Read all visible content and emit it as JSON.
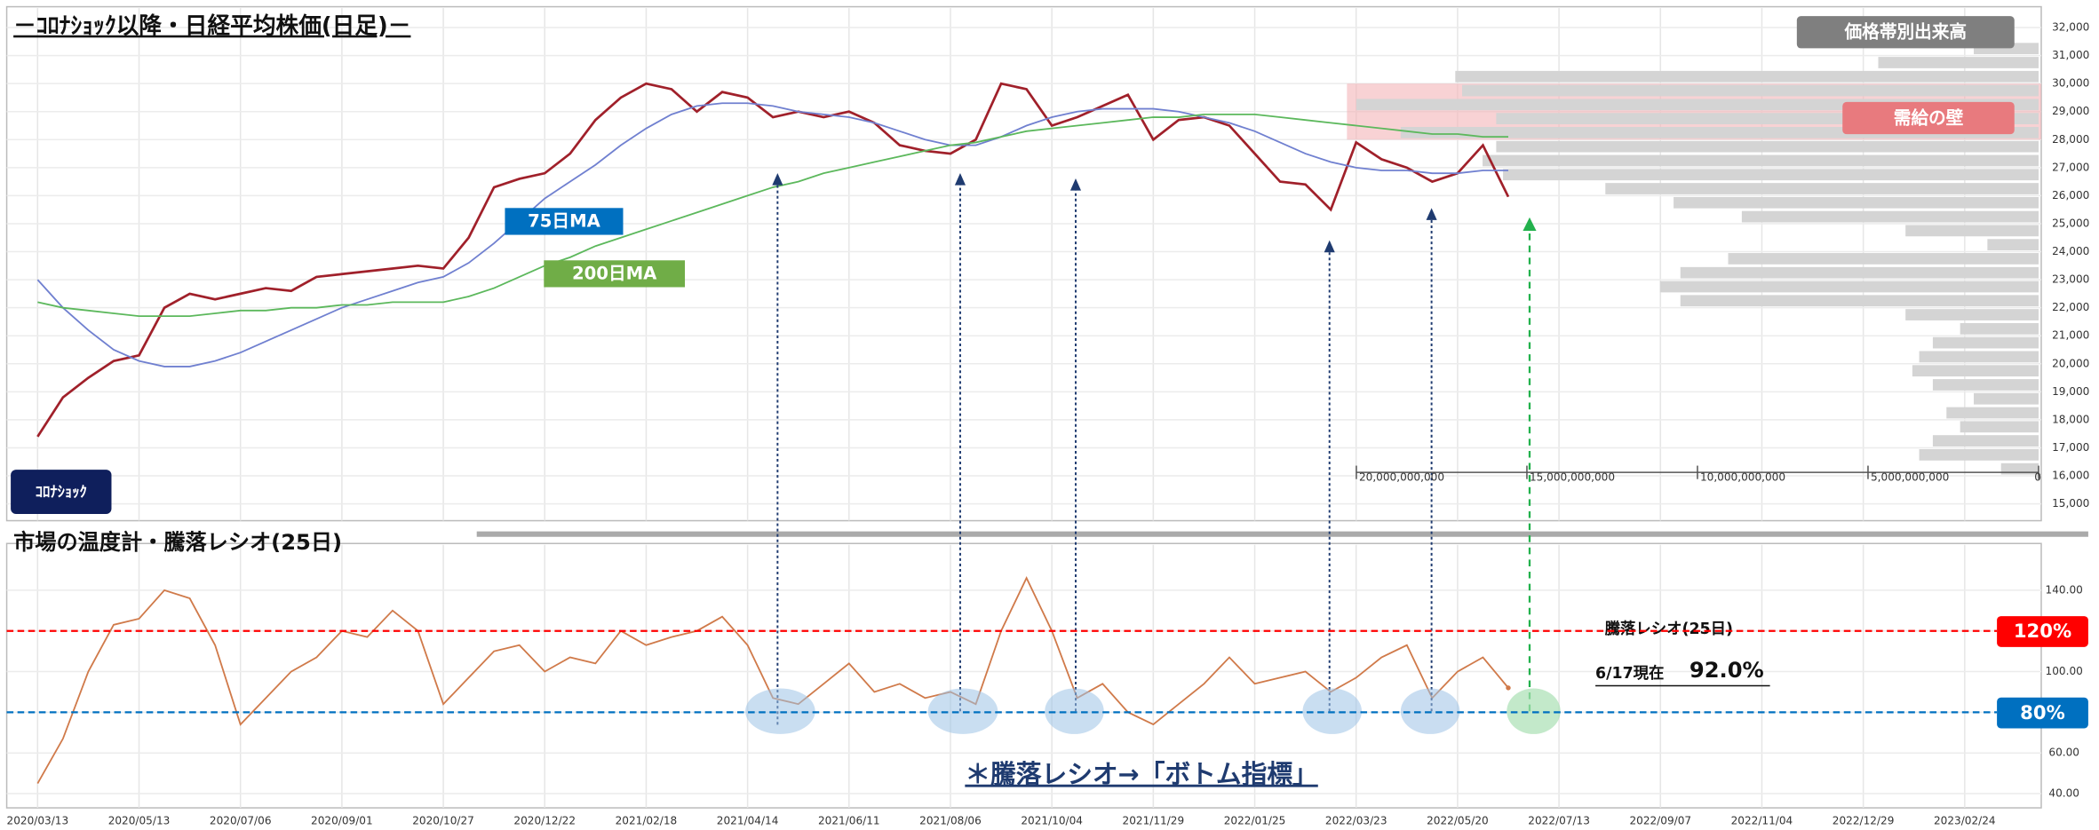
{
  "chart_data": [
    {
      "type": "line",
      "title": "－ｺﾛﾅｼｮｯｸ以降・日経平均株価(日足)－",
      "event_label": "ｺﾛﾅｼｮｯｸ",
      "categories": [
        "2020/03/13",
        null,
        null,
        null,
        "2020/05/13",
        null,
        null,
        null,
        "2020/07/06",
        null,
        null,
        null,
        "2020/09/01",
        null,
        null,
        null,
        "2020/10/27",
        null,
        null,
        null,
        "2020/12/22",
        null,
        null,
        null,
        "2021/02/18",
        null,
        null,
        null,
        "2021/04/14",
        null,
        null,
        null,
        "2021/06/11",
        null,
        null,
        null,
        "2021/08/06",
        null,
        null,
        null,
        "2021/10/04",
        null,
        null,
        null,
        "2021/11/29",
        null,
        null,
        null,
        "2022/01/25",
        null,
        null,
        null,
        "2022/03/23",
        null,
        null,
        null,
        "2022/05/20",
        null,
        null,
        null,
        "2022/07/13",
        null,
        null,
        null,
        "2022/09/07",
        null,
        null,
        null,
        "2022/11/04",
        null,
        null,
        null,
        "2022/12/29",
        null,
        null,
        null,
        "2023/02/24"
      ],
      "series": [
        {
          "color": "#a0202a",
          "values": [
            17400,
            18800,
            19500,
            20100,
            20300,
            22000,
            22500,
            22300,
            22500,
            22700,
            22600,
            23100,
            23200,
            23300,
            23400,
            23500,
            23400,
            24500,
            26300,
            26600,
            26800,
            27500,
            28700,
            29500,
            30000,
            29800,
            29000,
            29700,
            29500,
            28800,
            29000,
            28800,
            29000,
            28600,
            27800,
            27600,
            27500,
            28000,
            30000,
            29800,
            28500,
            28800,
            29200,
            29600,
            28000,
            28700,
            28800,
            28500,
            27500,
            26500,
            26400,
            25500,
            27900,
            27300,
            27000,
            26500,
            26800,
            27800,
            25960,
            null,
            null,
            null,
            null,
            null,
            null,
            null,
            null,
            null,
            null,
            null,
            null,
            null,
            null,
            null,
            null,
            null,
            null
          ]
        },
        {
          "name": "75日MA",
          "color": "#7080d0",
          "label_color": "#0070c0",
          "values": [
            23000,
            22000,
            21200,
            20500,
            20100,
            19900,
            19900,
            20100,
            20400,
            20800,
            21200,
            21600,
            22000,
            22300,
            22600,
            22900,
            23100,
            23600,
            24300,
            25100,
            25900,
            26500,
            27100,
            27800,
            28400,
            28900,
            29200,
            29300,
            29300,
            29200,
            29000,
            28900,
            28800,
            28600,
            28300,
            28000,
            27800,
            27800,
            28100,
            28500,
            28800,
            29000,
            29100,
            29100,
            29100,
            29000,
            28800,
            28600,
            28300,
            27900,
            27500,
            27200,
            27000,
            26900,
            26900,
            26800,
            26800,
            26900,
            26900,
            null,
            null,
            null,
            null,
            null,
            null,
            null,
            null,
            null,
            null,
            null,
            null,
            null,
            null,
            null,
            null,
            null,
            null
          ]
        },
        {
          "name": "200日MA",
          "color": "#5cb85c",
          "label_color": "#70ad47",
          "values": [
            22200,
            22000,
            21900,
            21800,
            21700,
            21700,
            21700,
            21800,
            21900,
            21900,
            22000,
            22000,
            22100,
            22100,
            22200,
            22200,
            22200,
            22400,
            22700,
            23100,
            23500,
            23800,
            24200,
            24500,
            24800,
            25100,
            25400,
            25700,
            26000,
            26300,
            26500,
            26800,
            27000,
            27200,
            27400,
            27600,
            27800,
            27900,
            28100,
            28300,
            28400,
            28500,
            28600,
            28700,
            28800,
            28800,
            28900,
            28900,
            28900,
            28800,
            28700,
            28600,
            28500,
            28400,
            28300,
            28200,
            28200,
            28100,
            28100,
            null,
            null,
            null,
            null,
            null,
            null,
            null,
            null,
            null,
            null,
            null,
            null,
            null,
            null,
            null,
            null,
            null,
            null
          ]
        }
      ],
      "ylim": [
        14400,
        32600
      ],
      "yticks": [
        {
          "value": 15000,
          "label": "15,000"
        },
        {
          "value": 16000,
          "label": "16,000"
        },
        {
          "value": 17000,
          "label": "17,000"
        },
        {
          "value": 18000,
          "label": "18,000"
        },
        {
          "value": 19000,
          "label": "19,000"
        },
        {
          "value": 20000,
          "label": "20,000"
        },
        {
          "value": 21000,
          "label": "21,000"
        },
        {
          "value": 22000,
          "label": "22,000"
        },
        {
          "value": 23000,
          "label": "23,000"
        },
        {
          "value": 24000,
          "label": "24,000"
        },
        {
          "value": 25000,
          "label": "25,000"
        },
        {
          "value": 26000,
          "label": "26,000"
        },
        {
          "value": 27000,
          "label": "27,000"
        },
        {
          "value": 28000,
          "label": "28,000"
        },
        {
          "value": 29000,
          "label": "29,000"
        },
        {
          "value": 30000,
          "label": "30,000"
        },
        {
          "value": 31000,
          "label": "31,000"
        },
        {
          "value": 32000,
          "label": "32,000"
        }
      ],
      "grid": true,
      "band": {
        "label": "需給の壁",
        "range": [
          28000,
          30000
        ],
        "color": "#f4b4b8"
      }
    },
    {
      "type": "histogram",
      "title": "価格帯別出来高",
      "orientation": "horizontal",
      "color": "#d4d4d4",
      "bins": [
        16000,
        16500,
        17000,
        17500,
        18000,
        18500,
        19000,
        19500,
        20000,
        20500,
        21000,
        21500,
        22000,
        22500,
        23000,
        23500,
        24000,
        24500,
        25000,
        25500,
        26000,
        26500,
        27000,
        27500,
        28000,
        28500,
        29000,
        29500,
        30000,
        30500,
        31000,
        31500
      ],
      "values": [
        1100000000,
        3500000000,
        3100000000,
        2300000000,
        2700000000,
        1900000000,
        3100000000,
        3700000000,
        3500000000,
        3100000000,
        2300000000,
        3900000000,
        10500000000,
        11100000000,
        10500000000,
        9100000000,
        1500000000,
        3900000000,
        8700000000,
        10700000000,
        12700000000,
        15700000000,
        16300000000,
        15900000000,
        18700000000,
        15900000000,
        20000000000,
        16900000000,
        17100000000,
        4700000000,
        1900000000
      ],
      "xlim": [
        0,
        20000000000
      ],
      "xticks": [
        {
          "value": 20000000000,
          "label": "20,000,000,000"
        },
        {
          "value": 15000000000,
          "label": "15,000,000,000"
        },
        {
          "value": 10000000000,
          "label": "10,000,000,000"
        },
        {
          "value": 5000000000,
          "label": "5,000,000,000"
        },
        0
      ]
    },
    {
      "type": "line",
      "title": "市場の温度計・騰落レシオ(25日)",
      "series_label": "騰落レシオ(25日)",
      "note": "＊騰落レシオ→「ボトム指標」",
      "series": [
        {
          "color": "#d07a4a",
          "values": [
            45,
            67,
            100,
            123,
            126,
            140,
            136,
            113,
            74,
            87,
            100,
            107,
            120,
            117,
            130,
            120,
            84,
            97,
            110,
            113,
            100,
            107,
            104,
            120,
            113,
            117,
            120,
            127,
            113,
            87,
            84,
            94,
            104,
            90,
            94,
            87,
            90,
            84,
            120,
            146,
            120,
            87,
            94,
            80,
            74,
            84,
            94,
            107,
            94,
            97,
            100,
            90,
            97,
            107,
            113,
            87,
            100,
            107,
            92,
            null,
            null,
            null,
            null,
            null,
            null,
            null,
            null,
            null,
            null,
            null,
            null,
            null,
            null,
            null,
            null,
            null,
            null
          ]
        }
      ],
      "ylim": [
        33,
        161
      ],
      "yticks": [
        {
          "value": 40,
          "label": "40.00"
        },
        {
          "value": 60,
          "label": "60.00"
        },
        {
          "value": 80,
          "label": "80.00"
        },
        {
          "value": 100,
          "label": "100.00"
        },
        {
          "value": 120,
          "label": "120.00"
        },
        {
          "value": 140,
          "label": "140.00"
        }
      ],
      "grid": true,
      "thresholds": [
        {
          "value": 120,
          "label": "120%",
          "color": "#ff0000"
        },
        {
          "value": 80,
          "label": "80%",
          "color": "#0070c0"
        }
      ],
      "annotations": [
        {
          "text": "6/17現在",
          "value": 92,
          "label": "92.0%"
        }
      ]
    }
  ]
}
